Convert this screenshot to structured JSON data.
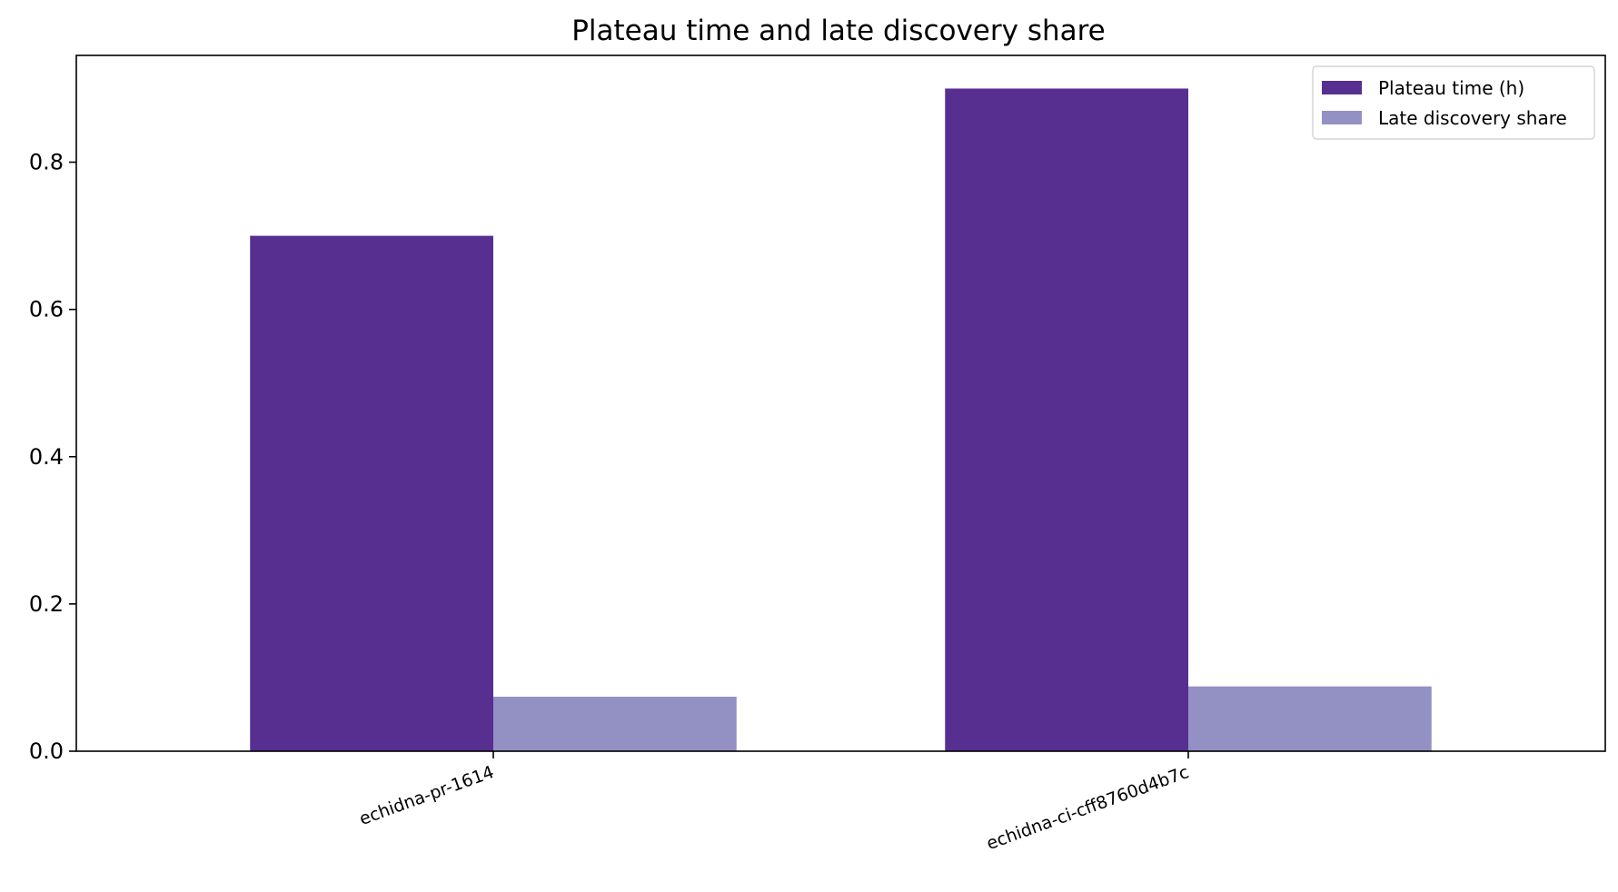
{
  "chart_data": {
    "type": "bar",
    "title": "Plateau time and late discovery share",
    "xlabel": "",
    "ylabel": "",
    "categories": [
      "echidna-pr-1614",
      "echidna-ci-cff8760d4b7c"
    ],
    "series": [
      {
        "name": "Plateau time (h)",
        "values": [
          0.7,
          0.9
        ],
        "color": "#572f91"
      },
      {
        "name": "Late discovery share",
        "values": [
          0.074,
          0.088
        ],
        "color": "#9390c3"
      }
    ],
    "ylim": [
      0,
      0.945
    ],
    "yticks": [
      "0.0",
      "0.2",
      "0.4",
      "0.6",
      "0.8"
    ],
    "grid": false,
    "legend_position": "top-right"
  }
}
